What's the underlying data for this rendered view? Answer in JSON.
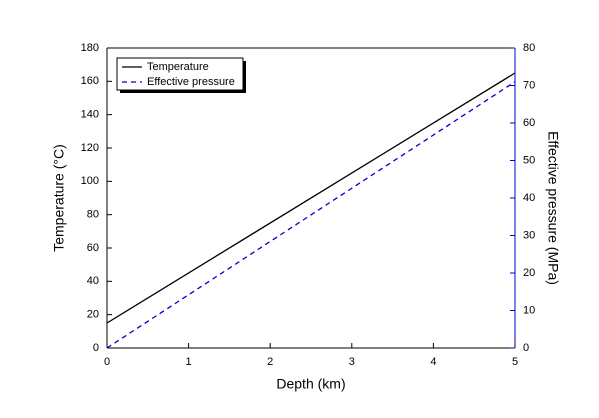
{
  "chart_data": {
    "type": "line",
    "x_label": "Depth (km)",
    "y_label": "Temperature (°C)",
    "y2_label": "Effective pressure (MPa)",
    "x": [
      0,
      5
    ],
    "series": [
      {
        "name": "Temperature",
        "color": "#000000",
        "dash": false,
        "values": [
          15,
          165
        ]
      },
      {
        "name": "Effective pressure",
        "color": "#0000cc",
        "dash": true,
        "axis": "y2",
        "values": [
          0,
          71
        ]
      }
    ],
    "xlim": [
      0,
      5
    ],
    "xticks": [
      0,
      1,
      2,
      3,
      4,
      5
    ],
    "ylim": [
      0,
      180
    ],
    "yticks": [
      0,
      20,
      40,
      60,
      80,
      100,
      120,
      140,
      160,
      180
    ],
    "y2lim": [
      0,
      80
    ],
    "y2ticks": [
      0,
      10,
      20,
      30,
      40,
      50,
      60,
      70,
      80
    ],
    "y2_color": "#0000cc",
    "legend": "upper left"
  }
}
